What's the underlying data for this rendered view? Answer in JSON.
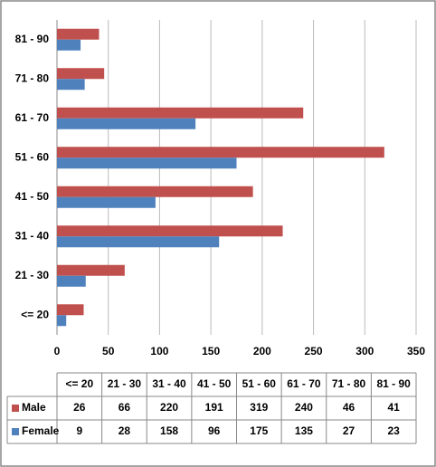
{
  "chart_data": {
    "type": "bar",
    "orientation": "horizontal",
    "categories": [
      "<= 20",
      "21 - 30",
      "31 - 40",
      "41 - 50",
      "51 - 60",
      "61 - 70",
      "71 - 80",
      "81 - 90"
    ],
    "series": [
      {
        "name": "Male",
        "color": "#c0504d",
        "values": [
          26,
          66,
          220,
          191,
          319,
          240,
          46,
          41
        ]
      },
      {
        "name": "Female",
        "color": "#4f81bd",
        "values": [
          9,
          28,
          158,
          96,
          175,
          135,
          27,
          23
        ]
      }
    ],
    "xlim": [
      0,
      350
    ],
    "xticks": [
      0,
      50,
      100,
      150,
      200,
      250,
      300,
      350
    ],
    "grid": true,
    "data_table": true
  }
}
